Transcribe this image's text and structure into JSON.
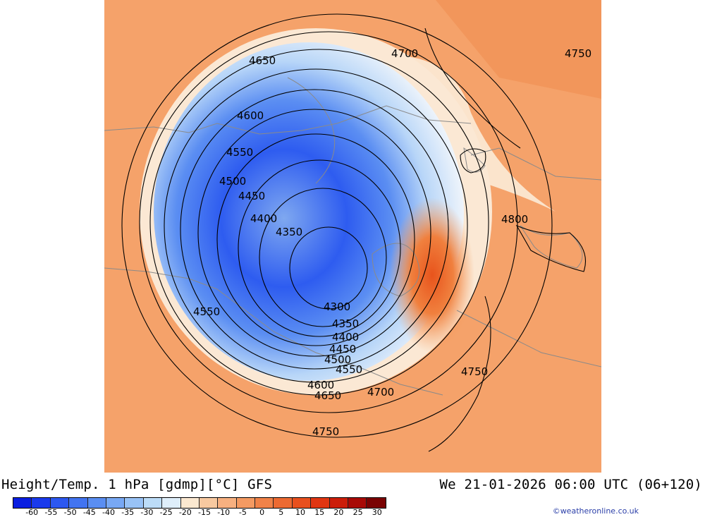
{
  "title": {
    "left": "Height/Temp. 1 hPa [gdmp][°C] GFS",
    "right": "We 21-01-2026 06:00 UTC (06+120)"
  },
  "credit": "©weatheronline.co.uk",
  "colorbar": {
    "labels": [
      "-60",
      "-55",
      "-50",
      "-45",
      "-40",
      "-35",
      "-30",
      "-25",
      "-20",
      "-15",
      "-10",
      "-5",
      "0",
      "5",
      "10",
      "15",
      "20",
      "25",
      "30"
    ],
    "colors": [
      "#0a1ee0",
      "#1a3aec",
      "#2c58f0",
      "#4274f0",
      "#5a8ef2",
      "#78a8f4",
      "#98c2f6",
      "#bcdcf8",
      "#deeefa",
      "#fbe8d0",
      "#f8c9a0",
      "#f7b080",
      "#f49a62",
      "#f08248",
      "#ec6a32",
      "#e8501e",
      "#e03612",
      "#cc1e0a",
      "#a80a06",
      "#7a0202"
    ]
  },
  "contour_labels": [
    "4650",
    "4700",
    "4750",
    "4600",
    "4550",
    "4500",
    "4450",
    "4400",
    "4350",
    "4300",
    "4800",
    "4550",
    "4350",
    "4400",
    "4450",
    "4500",
    "4550",
    "4600",
    "4650",
    "4700",
    "4750",
    "4750"
  ]
}
